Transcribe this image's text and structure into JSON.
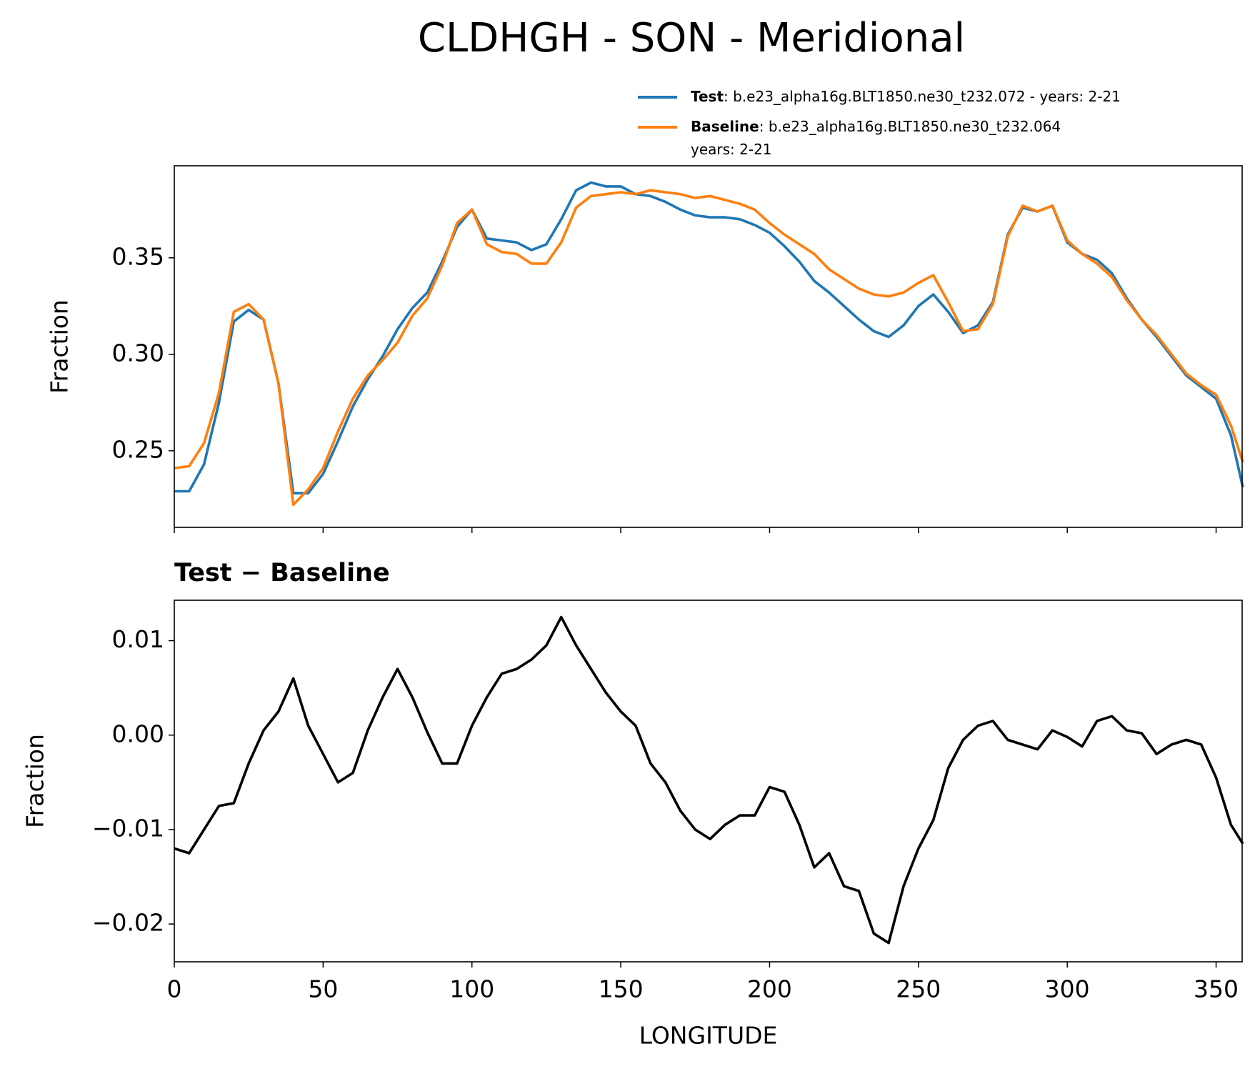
{
  "chart_data": [
    {
      "type": "line",
      "title": "CLDHGH - SON - Meridional",
      "ylabel": "Fraction",
      "x": [
        0,
        5,
        10,
        15,
        20,
        25,
        30,
        35,
        40,
        45,
        50,
        55,
        60,
        65,
        70,
        75,
        80,
        85,
        90,
        95,
        100,
        105,
        110,
        115,
        120,
        125,
        130,
        135,
        140,
        145,
        150,
        155,
        160,
        165,
        170,
        175,
        180,
        185,
        190,
        195,
        200,
        205,
        210,
        215,
        220,
        225,
        230,
        235,
        240,
        245,
        250,
        255,
        260,
        265,
        270,
        275,
        280,
        285,
        290,
        295,
        300,
        305,
        310,
        315,
        320,
        325,
        330,
        335,
        340,
        345,
        350,
        355,
        359
      ],
      "series": [
        {
          "name": "Test",
          "label_lines": [
            ": b.e23_alpha16g.BLT1850.ne30_t232.072 - years: 2-21"
          ],
          "color": "#1f77b4",
          "values": [
            0.229,
            0.229,
            0.243,
            0.275,
            0.317,
            0.323,
            0.318,
            0.285,
            0.228,
            0.228,
            0.238,
            0.255,
            0.273,
            0.287,
            0.299,
            0.313,
            0.324,
            0.332,
            0.348,
            0.366,
            0.375,
            0.36,
            0.359,
            0.358,
            0.354,
            0.357,
            0.37,
            0.385,
            0.389,
            0.387,
            0.387,
            0.383,
            0.382,
            0.379,
            0.375,
            0.372,
            0.371,
            0.371,
            0.37,
            0.367,
            0.363,
            0.356,
            0.348,
            0.338,
            0.332,
            0.325,
            0.318,
            0.312,
            0.309,
            0.315,
            0.325,
            0.331,
            0.322,
            0.311,
            0.315,
            0.327,
            0.362,
            0.376,
            0.374,
            0.377,
            0.358,
            0.352,
            0.349,
            0.342,
            0.329,
            0.318,
            0.309,
            0.299,
            0.289,
            0.283,
            0.277,
            0.258,
            0.231
          ]
        },
        {
          "name": "Baseline",
          "label_lines": [
            ": b.e23_alpha16g.BLT1850.ne30_t232.064",
            "years: 2-21"
          ],
          "color": "#ff7f0e",
          "values": [
            0.241,
            0.242,
            0.254,
            0.28,
            0.322,
            0.326,
            0.318,
            0.285,
            0.222,
            0.23,
            0.241,
            0.26,
            0.277,
            0.289,
            0.297,
            0.306,
            0.32,
            0.329,
            0.346,
            0.368,
            0.375,
            0.357,
            0.353,
            0.352,
            0.347,
            0.347,
            0.358,
            0.376,
            0.382,
            0.383,
            0.384,
            0.383,
            0.385,
            0.384,
            0.383,
            0.381,
            0.382,
            0.38,
            0.378,
            0.375,
            0.368,
            0.362,
            0.357,
            0.352,
            0.344,
            0.339,
            0.334,
            0.331,
            0.33,
            0.332,
            0.337,
            0.341,
            0.327,
            0.312,
            0.313,
            0.326,
            0.361,
            0.377,
            0.374,
            0.377,
            0.359,
            0.352,
            0.347,
            0.34,
            0.328,
            0.318,
            0.31,
            0.3,
            0.29,
            0.284,
            0.279,
            0.263,
            0.244
          ]
        }
      ],
      "xlim": [
        0,
        358.75
      ],
      "xticks": [
        0,
        50,
        100,
        150,
        200,
        250,
        300,
        350
      ],
      "ylim": [
        0.2103,
        0.3977
      ],
      "yticks": [
        0.35,
        {
          "value": 0.3,
          "label": "0.30"
        },
        0.25
      ]
    },
    {
      "type": "line",
      "title": "Test − Baseline",
      "ylabel": "Fraction",
      "xlabel": "LONGITUDE",
      "x": [
        0,
        5,
        10,
        15,
        20,
        25,
        30,
        35,
        40,
        45,
        50,
        55,
        60,
        65,
        70,
        75,
        80,
        85,
        90,
        95,
        100,
        105,
        110,
        115,
        120,
        125,
        130,
        135,
        140,
        145,
        150,
        155,
        160,
        165,
        170,
        175,
        180,
        185,
        190,
        195,
        200,
        205,
        210,
        215,
        220,
        225,
        230,
        235,
        240,
        245,
        250,
        255,
        260,
        265,
        270,
        275,
        280,
        285,
        290,
        295,
        300,
        305,
        310,
        315,
        320,
        325,
        330,
        335,
        340,
        345,
        350,
        355,
        359
      ],
      "series": [
        {
          "color": "#000000",
          "values": [
            -0.012,
            -0.0125,
            -0.01,
            -0.0075,
            -0.0072,
            -0.003,
            0.0005,
            0.0025,
            0.006,
            0.001,
            -0.002,
            -0.005,
            -0.004,
            0.0005,
            0.004,
            0.007,
            0.004,
            0.0003,
            -0.003,
            -0.003,
            0.001,
            0.004,
            0.0065,
            0.007,
            0.008,
            0.0095,
            0.0125,
            0.0095,
            0.007,
            0.0045,
            0.0025,
            0.001,
            -0.003,
            -0.005,
            -0.008,
            -0.01,
            -0.011,
            -0.0095,
            -0.0085,
            -0.0085,
            -0.0055,
            -0.006,
            -0.0095,
            -0.014,
            -0.0125,
            -0.016,
            -0.0165,
            -0.021,
            -0.022,
            -0.016,
            -0.012,
            -0.009,
            -0.0035,
            -0.0005,
            0.001,
            0.0015,
            -0.0005,
            -0.001,
            -0.0015,
            0.0005,
            -0.0002,
            -0.0012,
            0.0015,
            0.002,
            0.0005,
            0.0002,
            -0.002,
            -0.001,
            -0.0005,
            -0.001,
            -0.0045,
            -0.0095,
            -0.0115
          ]
        }
      ],
      "xlim": [
        0,
        358.75
      ],
      "xticks": [
        0,
        50,
        100,
        150,
        200,
        250,
        300,
        350
      ],
      "ylim": [
        -0.024,
        0.01428
      ],
      "yticks": [
        0.01,
        {
          "value": 0,
          "label": "0.00"
        },
        {
          "value": -0.01,
          "label": "−0.01"
        },
        {
          "value": -0.02,
          "label": "−0.02"
        }
      ]
    }
  ]
}
